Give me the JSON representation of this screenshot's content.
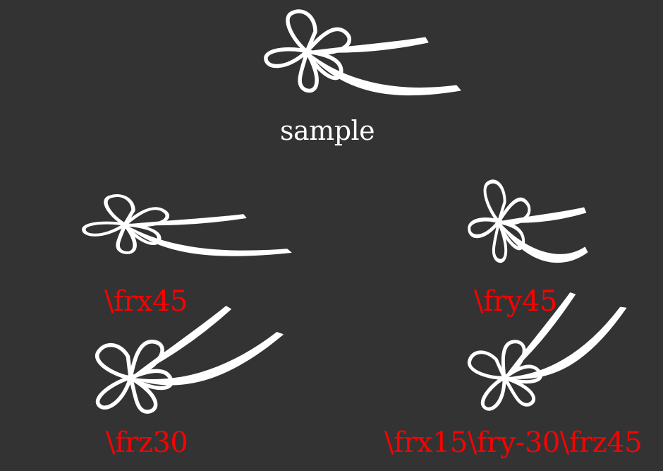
{
  "sample_label": "sample",
  "transforms": {
    "frx45": "\\frx45",
    "fry45": "\\fry45",
    "frz30": "\\frz30",
    "combo": "\\frx15\\fry-30\\frz45"
  },
  "colors": {
    "background": "#333333",
    "drawing": "#ffffff",
    "transform_label": "#ff0000",
    "sample_label": "#ffffff"
  },
  "icon": "flower-with-ribbon-icon"
}
